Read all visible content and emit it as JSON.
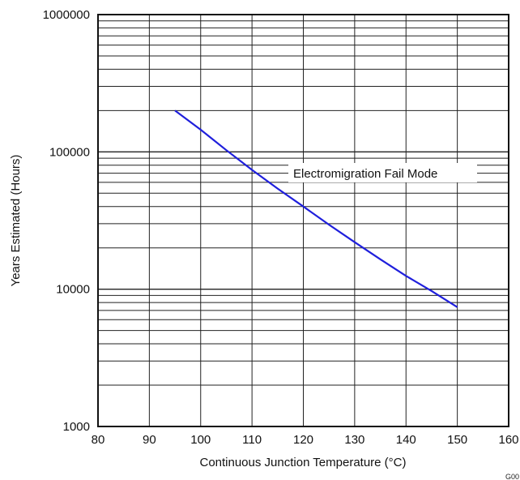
{
  "chart_data": {
    "type": "line",
    "xlabel": "Continuous Junction Temperature (°C)",
    "ylabel": "Years Estimated (Hours)",
    "xlim": [
      80,
      160
    ],
    "ylim": [
      1000,
      1000000
    ],
    "yscale": "log",
    "grid": true,
    "x_ticks": [
      "80",
      "90",
      "100",
      "110",
      "120",
      "130",
      "140",
      "150",
      "160"
    ],
    "y_ticks": [
      "1000",
      "10000",
      "100000",
      "1000000"
    ],
    "series": [
      {
        "color": "#1f1fdc",
        "points": [
          {
            "x": 95,
            "y": 200000
          },
          {
            "x": 100,
            "y": 145000
          },
          {
            "x": 105,
            "y": 103000
          },
          {
            "x": 110,
            "y": 74000
          },
          {
            "x": 115,
            "y": 54000
          },
          {
            "x": 120,
            "y": 40000
          },
          {
            "x": 125,
            "y": 29500
          },
          {
            "x": 130,
            "y": 22000
          },
          {
            "x": 135,
            "y": 16500
          },
          {
            "x": 140,
            "y": 12500
          },
          {
            "x": 145,
            "y": 9700
          },
          {
            "x": 150,
            "y": 7400
          }
        ]
      }
    ],
    "annotation": "Electromigration Fail Mode",
    "figure_code": "G00"
  }
}
